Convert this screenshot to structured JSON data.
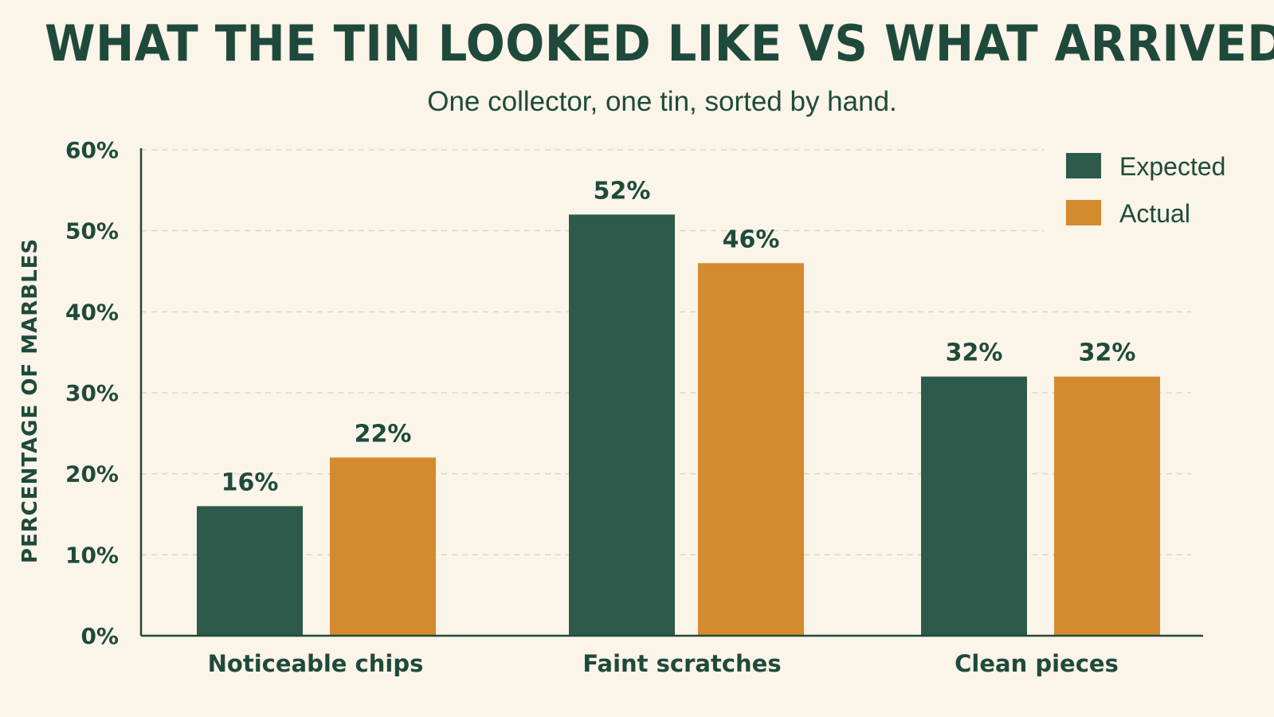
{
  "title": "WHAT THE TIN LOOKED LIKE VS WHAT ARRIVED",
  "subtitle": "One collector, one tin, sorted by hand.",
  "colors": {
    "background": "#fbf4e8",
    "expected": "#2d5a4b",
    "actual": "#d48a2e",
    "text": "#1f4a3b",
    "grid": "#ddd3c3"
  },
  "chart_data": {
    "type": "bar",
    "categories": [
      "Noticeable chips",
      "Faint scratches",
      "Clean pieces"
    ],
    "series": [
      {
        "name": "Expected",
        "values": [
          16,
          52,
          32
        ],
        "labels": [
          "16%",
          "52%",
          "32%"
        ]
      },
      {
        "name": "Actual",
        "values": [
          22,
          46,
          32
        ],
        "labels": [
          "22%",
          "46%",
          "32%"
        ]
      }
    ],
    "ylabel": "PERCENTAGE OF MARBLES",
    "xlabel": "",
    "ylim": [
      0,
      60
    ],
    "yticks": [
      0,
      10,
      20,
      30,
      40,
      50,
      60
    ],
    "ytick_labels": [
      "0%",
      "10%",
      "20%",
      "30%",
      "40%",
      "50%",
      "60%"
    ],
    "grid": true,
    "legend_position": "top-right"
  }
}
